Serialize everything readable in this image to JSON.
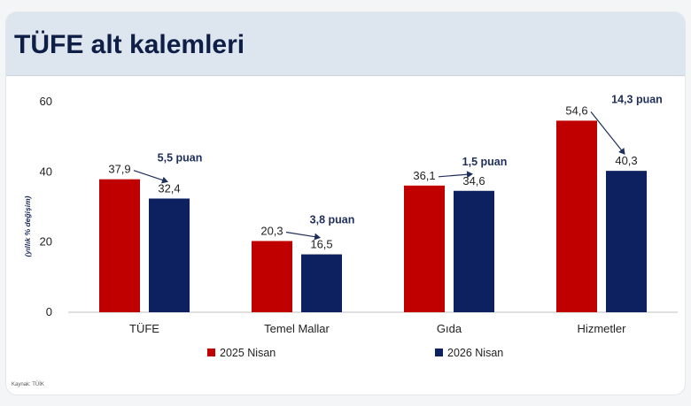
{
  "page": {
    "title": "TÜFE alt kalemleri",
    "source": "Kaynak: TÜİK"
  },
  "chart_data": {
    "type": "bar",
    "ylabel": "(yıllık % değişim)",
    "ylim": [
      0,
      60
    ],
    "yticks": [
      0,
      20,
      40,
      60
    ],
    "categories": [
      "TÜFE",
      "Temel Mallar",
      "Gıda",
      "Hizmetler"
    ],
    "series": [
      {
        "name": "2025 Nisan",
        "color": "#c00000",
        "values": [
          37.9,
          20.3,
          36.1,
          54.6
        ],
        "labels": [
          "37,9",
          "20,3",
          "36,1",
          "54,6"
        ]
      },
      {
        "name": "2026 Nisan",
        "color": "#0d2160",
        "values": [
          32.4,
          16.5,
          34.6,
          40.3
        ],
        "labels": [
          "32,4",
          "16,5",
          "34,6",
          "40,3"
        ]
      }
    ],
    "annotations": [
      "5,5 puan",
      "3,8 puan",
      "1,5 puan",
      "14,3 puan"
    ],
    "legend_position": "bottom",
    "grid": false
  }
}
